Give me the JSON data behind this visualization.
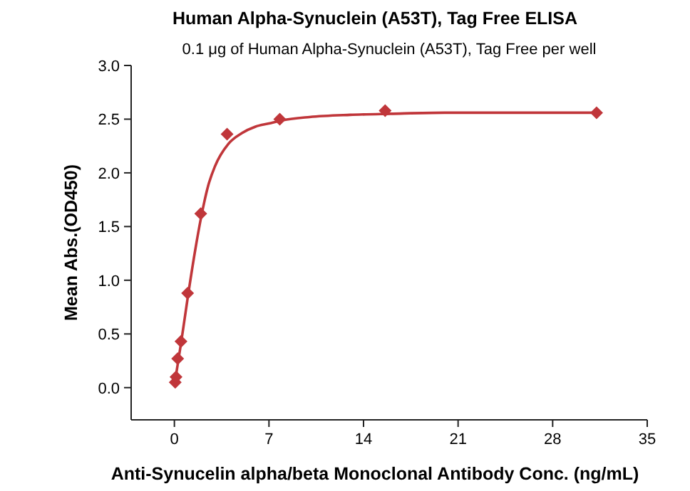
{
  "chart_data": {
    "type": "scatter",
    "title": "Human Alpha-Synuclein (A53T), Tag Free ELISA",
    "subtitle": "0.1 μg of Human Alpha-Synuclein (A53T), Tag Free per well",
    "xlabel": "Anti-Synucelin alpha/beta Monoclonal Antibody Conc. (ng/mL)",
    "ylabel": "Mean Abs.(OD450)",
    "xlim": [
      -3.2,
      35
    ],
    "ylim": [
      -0.3,
      3.0
    ],
    "xticks": [
      0,
      7,
      14,
      21,
      28,
      35
    ],
    "yticks": [
      {
        "value": 0,
        "label": "0.0"
      },
      0.5,
      {
        "value": 1,
        "label": "1.0"
      },
      1.5,
      {
        "value": 2,
        "label": "2.0"
      },
      2.5,
      {
        "value": 3,
        "label": "3.0"
      }
    ],
    "grid": false,
    "series": [
      {
        "marker": "diamond",
        "color": "#c0363a",
        "x": [
          0.061,
          0.122,
          0.244,
          0.488,
          0.977,
          1.95,
          3.9,
          7.8,
          15.6,
          31.25
        ],
        "values": [
          0.05,
          0.1,
          0.27,
          0.43,
          0.88,
          1.62,
          2.36,
          2.5,
          2.58,
          2.56
        ]
      },
      {
        "type": "line",
        "marker": "none",
        "line_style": "solid",
        "color": "#c0363a",
        "x": [
          0.0,
          0.25,
          0.5,
          1,
          1.5,
          2,
          2.5,
          3,
          4,
          5,
          6,
          7,
          8,
          10,
          13,
          16,
          20,
          25,
          31.25
        ],
        "values": [
          0.02,
          0.22,
          0.42,
          0.85,
          1.25,
          1.6,
          1.88,
          2.06,
          2.27,
          2.37,
          2.43,
          2.46,
          2.49,
          2.52,
          2.54,
          2.55,
          2.56,
          2.56,
          2.56
        ]
      }
    ]
  }
}
